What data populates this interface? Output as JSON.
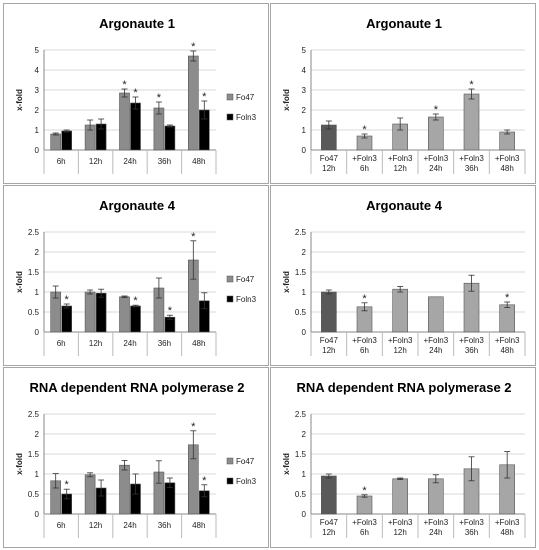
{
  "colors": {
    "fo47": "#8c8c8c",
    "foln3": "#000000",
    "control_dark": "#595959",
    "light": "#a6a6a6",
    "border": "#a6a6a6"
  },
  "chart_data": [
    {
      "type": "bar",
      "title": "Argonaute 1",
      "ylabel": "x-fold",
      "ylim": [
        0,
        5
      ],
      "yticks": [
        "0",
        "1",
        "2",
        "3",
        "4",
        "5"
      ],
      "categories": [
        "6h",
        "12h",
        "24h",
        "36h",
        "48h"
      ],
      "series": [
        {
          "name": "Fo47",
          "color": "fo47",
          "values": [
            0.8,
            1.25,
            2.85,
            2.1,
            4.7
          ],
          "errors": [
            0.05,
            0.25,
            0.2,
            0.3,
            0.25
          ],
          "stars": [
            false,
            false,
            true,
            true,
            true
          ]
        },
        {
          "name": "Foln3",
          "color": "foln3",
          "values": [
            0.95,
            1.3,
            2.35,
            1.2,
            2.0
          ],
          "errors": [
            0.05,
            0.25,
            0.3,
            0.05,
            0.45
          ],
          "stars": [
            false,
            false,
            true,
            false,
            true
          ]
        }
      ],
      "legend": "right"
    },
    {
      "type": "bar",
      "title": "Argonaute 1",
      "ylabel": "x-fold",
      "ylim": [
        0,
        5
      ],
      "yticks": [
        "0",
        "1",
        "2",
        "3",
        "4",
        "5"
      ],
      "categories": [
        [
          "Fo47",
          "12h"
        ],
        [
          "+Foln3",
          "6h"
        ],
        [
          "+Foln3",
          "12h"
        ],
        [
          "+Foln3",
          "24h"
        ],
        [
          "+Foln3",
          "36h"
        ],
        [
          "+Foln3",
          "48h"
        ]
      ],
      "series": [
        {
          "values": [
            1.25,
            0.7,
            1.3,
            1.65,
            2.8,
            0.9
          ],
          "errors": [
            0.2,
            0.1,
            0.3,
            0.15,
            0.25,
            0.1
          ],
          "stars": [
            false,
            true,
            false,
            true,
            true,
            false
          ],
          "colors": [
            "control_dark",
            "light",
            "light",
            "light",
            "light",
            "light"
          ]
        }
      ]
    },
    {
      "type": "bar",
      "title": "Argonaute 4",
      "ylabel": "x-fold",
      "ylim": [
        0,
        2.5
      ],
      "yticks": [
        "0",
        "0.5",
        "1",
        "1.5",
        "2",
        "2.5"
      ],
      "categories": [
        "6h",
        "12h",
        "24h",
        "36h",
        "48h"
      ],
      "series": [
        {
          "name": "Fo47",
          "color": "fo47",
          "values": [
            1.0,
            1.0,
            0.88,
            1.1,
            1.8
          ],
          "errors": [
            0.15,
            0.05,
            0.02,
            0.25,
            0.48
          ],
          "stars": [
            false,
            false,
            false,
            false,
            true
          ]
        },
        {
          "name": "Foln3",
          "color": "foln3",
          "values": [
            0.65,
            0.97,
            0.65,
            0.37,
            0.78
          ],
          "errors": [
            0.05,
            0.1,
            0.02,
            0.05,
            0.2
          ],
          "stars": [
            true,
            false,
            true,
            true,
            false
          ]
        }
      ],
      "legend": "right"
    },
    {
      "type": "bar",
      "title": "Argonaute 4",
      "ylabel": "x-fold",
      "ylim": [
        0,
        2.5
      ],
      "yticks": [
        "0",
        "0.5",
        "1",
        "1.5",
        "2",
        "2.5"
      ],
      "categories": [
        [
          "Fo47",
          "12h"
        ],
        [
          "+Foln3",
          "6h"
        ],
        [
          "+Foln3",
          "12h"
        ],
        [
          "+Foln3",
          "24h"
        ],
        [
          "+Foln3",
          "36h"
        ],
        [
          "+Foln3",
          "48h"
        ]
      ],
      "series": [
        {
          "values": [
            1.0,
            0.63,
            1.07,
            0.88,
            1.22,
            0.68
          ],
          "errors": [
            0.05,
            0.1,
            0.07,
            0.0,
            0.2,
            0.07
          ],
          "stars": [
            false,
            true,
            false,
            false,
            false,
            true
          ],
          "colors": [
            "control_dark",
            "light",
            "light",
            "light",
            "light",
            "light"
          ]
        }
      ]
    },
    {
      "type": "bar",
      "title": "RNA dependent RNA polymerase 2",
      "ylabel": "x-fold",
      "ylim": [
        0,
        2.5
      ],
      "yticks": [
        "0",
        "0.5",
        "1",
        "1.5",
        "2",
        "2.5"
      ],
      "categories": [
        "6h",
        "12h",
        "24h",
        "36h",
        "48h"
      ],
      "series": [
        {
          "name": "Fo47",
          "color": "fo47",
          "values": [
            0.83,
            0.98,
            1.22,
            1.05,
            1.73
          ],
          "errors": [
            0.18,
            0.05,
            0.12,
            0.28,
            0.35
          ],
          "stars": [
            false,
            false,
            false,
            false,
            true
          ]
        },
        {
          "name": "Foln3",
          "color": "foln3",
          "values": [
            0.5,
            0.65,
            0.75,
            0.78,
            0.58
          ],
          "errors": [
            0.12,
            0.2,
            0.25,
            0.12,
            0.15
          ],
          "stars": [
            true,
            false,
            false,
            false,
            true
          ]
        }
      ],
      "legend": "right"
    },
    {
      "type": "bar",
      "title": "RNA dependent RNA polymerase 2",
      "ylabel": "x-fold",
      "ylim": [
        0,
        2.5
      ],
      "yticks": [
        "0",
        "0.5",
        "1",
        "1.5",
        "2",
        "2.5"
      ],
      "categories": [
        [
          "Fo47",
          "12h"
        ],
        [
          "+Foln3",
          "6h"
        ],
        [
          "+Foln3",
          "12h"
        ],
        [
          "+Foln3",
          "24h"
        ],
        [
          "+Foln3",
          "36h"
        ],
        [
          "+Foln3",
          "48h"
        ]
      ],
      "series": [
        {
          "values": [
            0.95,
            0.45,
            0.88,
            0.88,
            1.13,
            1.23
          ],
          "errors": [
            0.05,
            0.03,
            0.02,
            0.1,
            0.3,
            0.33
          ],
          "stars": [
            false,
            true,
            false,
            false,
            false,
            false
          ],
          "colors": [
            "control_dark",
            "light",
            "light",
            "light",
            "light",
            "light"
          ]
        }
      ]
    }
  ]
}
